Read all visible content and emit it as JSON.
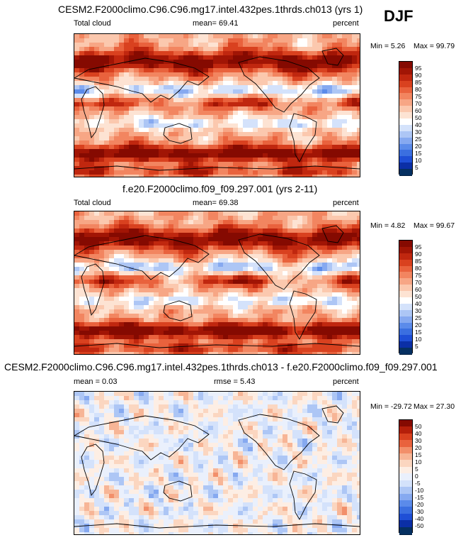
{
  "season": "DJF",
  "colors": {
    "warm_palette": [
      "#053061",
      "#0b2fa6",
      "#1f4fd6",
      "#3b6fe0",
      "#5b8bea",
      "#86a9f0",
      "#adc6f5",
      "#d4e2fb",
      "#ffffff",
      "#fde3d3",
      "#fbc8ae",
      "#f7a685",
      "#f28560",
      "#e9623d",
      "#d9411f",
      "#c0270f",
      "#a11505",
      "#850a01"
    ],
    "diff_palette": [
      "#053061",
      "#0b2fa6",
      "#1f4fd6",
      "#3b6fe0",
      "#5b8bea",
      "#86a9f0",
      "#adc6f5",
      "#d4e2fb",
      "#eaf0fc",
      "#fdeee4",
      "#fbd6c0",
      "#f7b596",
      "#f28f6a",
      "#e9623d",
      "#d9411f",
      "#b51f0a",
      "#850a01"
    ]
  },
  "chart_data": [
    {
      "type": "heatmap",
      "title": "CESM2.F2000climo.C96.C96.mg17.intel.432pes.1thrds.ch013 (yrs 1)",
      "left_label": "Total cloud",
      "center_label": "mean=  69.41",
      "right_label": "percent",
      "min_label": "Min =   5.26",
      "max_label": "Max =  99.79",
      "colorbar_levels": [
        "5",
        "10",
        "15",
        "20",
        "25",
        "30",
        "40",
        "50",
        "60",
        "70",
        "75",
        "80",
        "85",
        "90",
        "95"
      ],
      "mean": 69.41,
      "min": 5.26,
      "max": 99.79
    },
    {
      "type": "heatmap",
      "title": "f.e20.F2000climo.f09_f09.297.001 (yrs 2-11)",
      "left_label": "Total cloud",
      "center_label": "mean=  69.38",
      "right_label": "percent",
      "min_label": "Min =   4.82",
      "max_label": "Max =  99.67",
      "colorbar_levels": [
        "5",
        "10",
        "15",
        "20",
        "25",
        "30",
        "40",
        "50",
        "60",
        "70",
        "75",
        "80",
        "85",
        "90",
        "95"
      ],
      "mean": 69.38,
      "min": 4.82,
      "max": 99.67
    },
    {
      "type": "heatmap",
      "title": "CESM2.F2000climo.C96.C96.mg17.intel.432pes.1thrds.ch013 - f.e20.F2000climo.f09_f09.297.001",
      "left_label": "mean =   0.03",
      "center_label": "rmse =   5.43",
      "right_label": "percent",
      "min_label": "Min = -29.72",
      "max_label": "Max =  27.30",
      "colorbar_levels": [
        "-50",
        "-40",
        "-30",
        "-20",
        "-15",
        "-10",
        "-5",
        "0",
        "5",
        "10",
        "15",
        "20",
        "30",
        "40",
        "50"
      ],
      "mean": 0.03,
      "rmse": 5.43,
      "min": -29.72,
      "max": 27.3
    }
  ]
}
